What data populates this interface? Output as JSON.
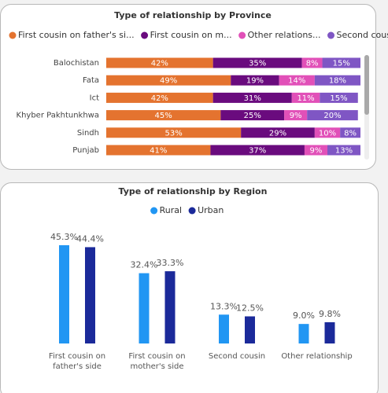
{
  "chart_data": [
    {
      "type": "bar",
      "stacked": true,
      "title": "Type of relationship by Province",
      "categories": [
        "Balochistan",
        "Fata",
        "Ict",
        "Khyber Pakhtunkhwa",
        "Sindh",
        "Punjab"
      ],
      "xlim": [
        0,
        100
      ],
      "series": [
        {
          "name": "First cousin on father's si...",
          "color": "#e4732f",
          "values": [
            42,
            49,
            42,
            45,
            53,
            41
          ],
          "value_labels": [
            "42%",
            "49%",
            "42%",
            "45%",
            "53%",
            "41%"
          ]
        },
        {
          "name": "First cousin on m...",
          "color": "#6a0b7e",
          "values": [
            35,
            19,
            31,
            25,
            29,
            37
          ],
          "value_labels": [
            "35%",
            "19%",
            "31%",
            "25%",
            "29%",
            "37%"
          ]
        },
        {
          "name": "Other relations...",
          "color": "#e150b8",
          "values": [
            8,
            14,
            11,
            9,
            10,
            9
          ],
          "value_labels": [
            "8%",
            "14%",
            "11%",
            "9%",
            "10%",
            "9%"
          ]
        },
        {
          "name": "Second cousin",
          "color": "#7f56c4",
          "values": [
            15,
            18,
            15,
            20,
            8,
            13
          ],
          "value_labels": [
            "15%",
            "18%",
            "15%",
            "20%",
            "8%",
            "13%"
          ]
        }
      ]
    },
    {
      "type": "column",
      "title": "Type of relationship by Region",
      "categories": [
        "First cousin on father's side",
        "First cousin on mother's side",
        "Second cousin",
        "Other relationship"
      ],
      "ylim": [
        0,
        50
      ],
      "series": [
        {
          "name": "Rural",
          "color": "#2196f3",
          "values": [
            45.3,
            32.4,
            13.3,
            9.0
          ],
          "value_labels": [
            "45.3%",
            "32.4%",
            "13.3%",
            "9.0%"
          ]
        },
        {
          "name": "Urban",
          "color": "#1b2a9a",
          "values": [
            44.4,
            33.3,
            12.5,
            9.8
          ],
          "value_labels": [
            "44.4%",
            "33.3%",
            "12.5%",
            "9.8%"
          ]
        }
      ]
    }
  ]
}
